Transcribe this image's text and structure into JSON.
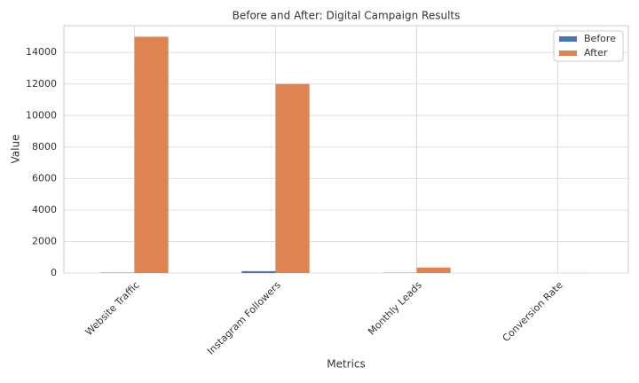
{
  "chart_data": {
    "type": "bar",
    "title": "Before and After: Digital Campaign Results",
    "x_label": "Metrics",
    "y_label": "Value",
    "categories": [
      "Website Traffic",
      "Instagram Followers",
      "Monthly Leads",
      "Conversion Rate"
    ],
    "series": [
      {
        "name": "Before",
        "color": "#4c72b0",
        "values": [
          20,
          120,
          15,
          2
        ]
      },
      {
        "name": "After",
        "color": "#dd8452",
        "values": [
          15000,
          12000,
          350,
          5
        ]
      }
    ],
    "ylim": [
      0,
      15700
    ],
    "yticks": [
      0,
      2000,
      4000,
      6000,
      8000,
      10000,
      12000,
      14000
    ],
    "grid": true,
    "legend": "upper right"
  }
}
